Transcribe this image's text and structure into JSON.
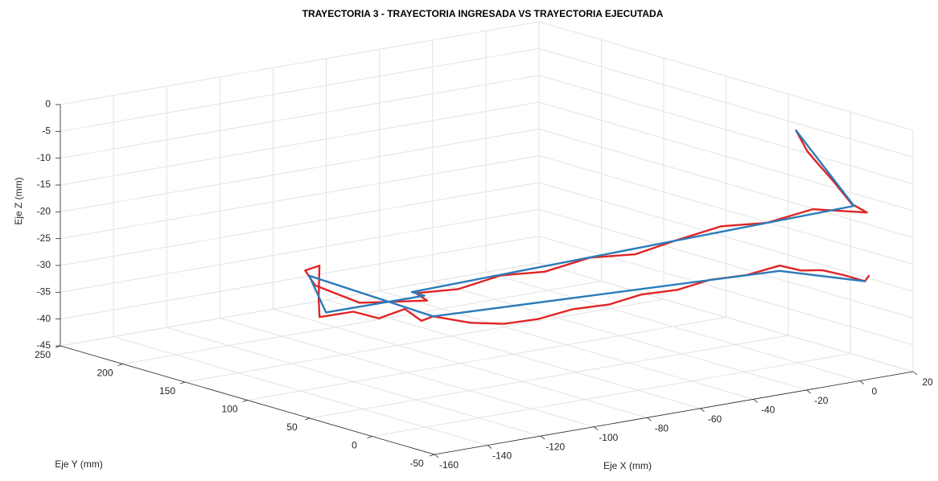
{
  "chart_data": {
    "type": "line3d",
    "title": "TRAYECTORIA 3 - TRAYECTORIA INGRESADA VS TRAYECTORIA EJECUTADA",
    "xlabel": "Eje X (mm)",
    "ylabel": "Eje Y  (mm)",
    "zlabel": "Eje Z  (mm)",
    "xlim": [
      -160,
      20
    ],
    "ylim": [
      -50,
      250
    ],
    "zlim": [
      -45,
      0
    ],
    "xticks": [
      -160,
      -140,
      -120,
      -100,
      -80,
      -60,
      -40,
      -20,
      0,
      20
    ],
    "yticks": [
      -50,
      0,
      50,
      100,
      150,
      200,
      250
    ],
    "zticks": [
      -45,
      -40,
      -35,
      -30,
      -25,
      -20,
      -15,
      -10,
      -5,
      0
    ],
    "grid": true,
    "series": [
      {
        "color": "#e02424",
        "x": [
          14,
          13,
          12,
          13,
          11,
          12,
          2,
          -7,
          -16,
          -25,
          -33,
          -42,
          -51,
          -60,
          -68,
          -77,
          -76,
          -85,
          -90,
          -89,
          -86,
          -91,
          -93,
          -85,
          -80,
          -75,
          -72,
          -70,
          -62,
          -55,
          -47,
          -40,
          -32,
          -25,
          -17,
          -10,
          -2,
          5,
          6,
          7,
          8,
          8,
          9
        ],
        "y": [
          31,
          20,
          12,
          0,
          -20,
          -30,
          -8,
          10,
          27,
          44,
          60,
          77,
          94,
          110,
          127,
          142,
          135,
          170,
          195,
          205,
          200,
          190,
          185,
          175,
          165,
          155,
          148,
          143,
          130,
          118,
          107,
          95,
          83,
          72,
          60,
          49,
          37,
          25,
          10,
          -5,
          -20,
          -37,
          -38
        ],
        "z": [
          -5,
          -8,
          -9,
          -12,
          -15,
          -16,
          -16,
          -19,
          -20,
          -23,
          -26,
          -27,
          -30,
          -31,
          -34,
          -35,
          -36,
          -38,
          -36,
          -34,
          -33,
          -38,
          -41,
          -40,
          -41,
          -39,
          -41,
          -40,
          -41,
          -41,
          -40,
          -38,
          -37,
          -35,
          -34,
          -32,
          -31,
          -29,
          -29,
          -28,
          -28,
          -28,
          -27
        ]
      },
      {
        "color": "#2b7bba",
        "x": [
          14,
          10,
          -77,
          -77,
          -92,
          -88,
          -70,
          5,
          8
        ],
        "y": [
          31,
          -24,
          145,
          135,
          182,
          204,
          143,
          25,
          -37
        ],
        "z": [
          -5,
          -15,
          -35,
          -35,
          -40,
          -35,
          -40,
          -30,
          -28
        ]
      }
    ]
  }
}
